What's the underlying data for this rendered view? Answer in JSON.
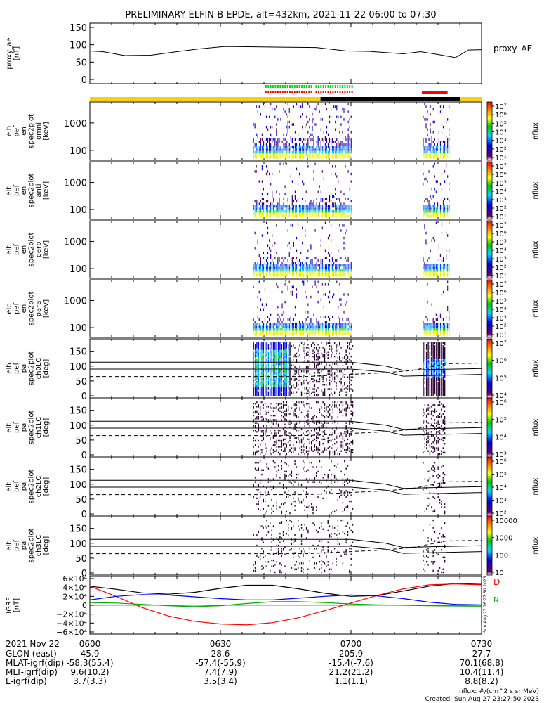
{
  "title": "PRELIMINARY ELFIN-B EPDE, alt=432km, 2021-11-22 06:00 to 07:30",
  "chart_data": [
    {
      "type": "line",
      "ylabel": "proxy_ae [nT]",
      "legend": "proxy_AE",
      "ylim": [
        0,
        150
      ],
      "yticks": [
        "150",
        "100",
        "50",
        "0"
      ],
      "x_minutes": [
        0,
        3,
        8,
        14,
        20,
        25,
        31,
        38,
        44,
        52,
        59,
        64,
        72,
        76,
        80,
        84,
        87,
        90
      ],
      "values": [
        82,
        80,
        69,
        70,
        80,
        88,
        95,
        94,
        93,
        92,
        82,
        81,
        74,
        80,
        72,
        63,
        85,
        86
      ]
    },
    {
      "type": "heatmap",
      "ylabel": [
        "elb",
        "pef",
        "en",
        "spec2plot",
        "omni",
        "[keV]"
      ],
      "yscale": "log",
      "yticks": [
        "1000",
        "100"
      ],
      "cbar_label": "nflux",
      "cbar_ticks": [
        "10⁷",
        "10⁶",
        "10⁵",
        "10⁴",
        "10³",
        "10²",
        "10¹"
      ]
    },
    {
      "type": "heatmap",
      "ylabel": [
        "elb",
        "pef",
        "en",
        "spec2plot",
        "anti",
        "[keV]"
      ],
      "yscale": "log",
      "yticks": [
        "1000",
        "100"
      ],
      "cbar_label": "nflux",
      "cbar_ticks": [
        "10⁷",
        "10⁶",
        "10⁵",
        "10⁴",
        "10³",
        "10²",
        "10¹"
      ]
    },
    {
      "type": "heatmap",
      "ylabel": [
        "elb",
        "pef",
        "en",
        "spec2plot",
        "perp",
        "[keV]"
      ],
      "yscale": "log",
      "yticks": [
        "1000",
        "100"
      ],
      "cbar_label": "nflux",
      "cbar_ticks": [
        "10⁷",
        "10⁶",
        "10⁵",
        "10⁴",
        "10³",
        "10²",
        "10¹"
      ]
    },
    {
      "type": "heatmap",
      "ylabel": [
        "elb",
        "pef",
        "en",
        "spec2plot",
        "para",
        "[keV]"
      ],
      "yscale": "log",
      "yticks": [
        "1000",
        "100"
      ],
      "cbar_label": "nflux",
      "cbar_ticks": [
        "10⁷",
        "10⁶",
        "10⁵",
        "10⁴",
        "10³",
        "10²",
        "10¹"
      ]
    },
    {
      "type": "heatmap",
      "ylabel": [
        "elb",
        "pef",
        "pa",
        "spec2plot",
        "ch0LC",
        "[deg]"
      ],
      "ylim": [
        0,
        180
      ],
      "yticks": [
        "150",
        "100",
        "50",
        "0"
      ],
      "cbar_label": "nflux",
      "cbar_ticks": [
        "10⁷",
        "10⁶",
        "10⁵",
        "10⁴"
      ]
    },
    {
      "type": "heatmap",
      "ylabel": [
        "elb",
        "pef",
        "pa",
        "spec2plot",
        "ch1LC",
        "[deg]"
      ],
      "ylim": [
        0,
        180
      ],
      "yticks": [
        "150",
        "100",
        "50",
        "0"
      ],
      "cbar_label": "nflux",
      "cbar_ticks": [
        "10⁶",
        "10⁵",
        "10⁴",
        "10³"
      ]
    },
    {
      "type": "heatmap",
      "ylabel": [
        "elb",
        "pef",
        "pa",
        "spec2plot",
        "ch2LC",
        "[deg]"
      ],
      "ylim": [
        0,
        180
      ],
      "yticks": [
        "150",
        "100",
        "50",
        "0"
      ],
      "cbar_label": "nflux",
      "cbar_ticks": [
        "10⁶",
        "10⁵",
        "10⁴",
        "10³",
        "10²"
      ]
    },
    {
      "type": "heatmap",
      "ylabel": [
        "elb",
        "pef",
        "pa",
        "spec2plot",
        "ch3LC",
        "[deg]"
      ],
      "ylim": [
        0,
        180
      ],
      "yticks": [
        "150",
        "100",
        "50",
        "0"
      ],
      "cbar_label": "nflux",
      "cbar_ticks": [
        "10000",
        "1000",
        "100",
        "10"
      ]
    },
    {
      "type": "line",
      "ylabel": "IGRF [nT]",
      "ylim": [
        -60000,
        60000
      ],
      "yticks": [
        "6×10⁴",
        "4×10⁴",
        "2×10⁴",
        "0",
        "−2×10⁴",
        "−4×10⁴",
        "−6×10⁴"
      ],
      "legend": [
        "D",
        "N"
      ],
      "x_minutes": [
        0,
        6,
        12,
        18,
        24,
        30,
        36,
        42,
        48,
        54,
        60,
        66,
        72,
        78,
        84,
        90
      ],
      "series": [
        {
          "color": "#000000",
          "values": [
            43000,
            36000,
            28000,
            25000,
            29000,
            38000,
            45000,
            45000,
            37000,
            27000,
            20000,
            22000,
            32000,
            43000,
            49000,
            47000
          ]
        },
        {
          "color": "#ff0000",
          "values": [
            43000,
            20000,
            -5000,
            -24000,
            -36000,
            -42000,
            -44000,
            -39000,
            -28000,
            -12000,
            5000,
            22000,
            37000,
            46000,
            48000,
            46000
          ]
        },
        {
          "color": "#0000ff",
          "values": [
            12000,
            20000,
            24000,
            23000,
            19000,
            15000,
            12000,
            12000,
            16000,
            20000,
            23000,
            21000,
            15000,
            7000,
            2000,
            1000
          ]
        },
        {
          "color": "#00aa00",
          "values": [
            6000,
            5000,
            2000,
            -1000,
            -3000,
            -1000,
            4000,
            8000,
            8000,
            6000,
            3000,
            1000,
            0,
            -1000,
            -1500,
            -2000
          ]
        }
      ]
    }
  ],
  "status_bar": {
    "colors": [
      "#f2d017",
      "#000000",
      "#ff0000",
      "#00dd00"
    ]
  },
  "rotated_stamp": "Sun Aug 27 16:27:50 2023",
  "footer": {
    "date_label": "2021 Nov 22",
    "time_ticks": [
      "0600",
      "0630",
      "0700",
      "0730"
    ],
    "rows": [
      {
        "label": "GLON (east)",
        "values": [
          "45.9",
          "28.6",
          "205.9",
          "27.7"
        ]
      },
      {
        "label": "MLAT-igrf(dip)",
        "values": [
          "-58.3(55.4)",
          "-57.4(-55.9)",
          "-15.4(-7.6)",
          "70.1(68.8)"
        ]
      },
      {
        "label": "MLT-igrf(dip)",
        "values": [
          "9.6(10.2)",
          "7.4(7.9)",
          "21.2(21.2)",
          "10.4(11.4)"
        ]
      },
      {
        "label": "L-igrf(dip)",
        "values": [
          "3.7(3.3)",
          "3.5(3.4)",
          "1.1(1.1)",
          "8.8(8.2)"
        ]
      }
    ],
    "units_note": "nflux: #/(cm^2 s sr MeV)",
    "created_note": "Created: Sun Aug 27 23:27:50 2023"
  }
}
